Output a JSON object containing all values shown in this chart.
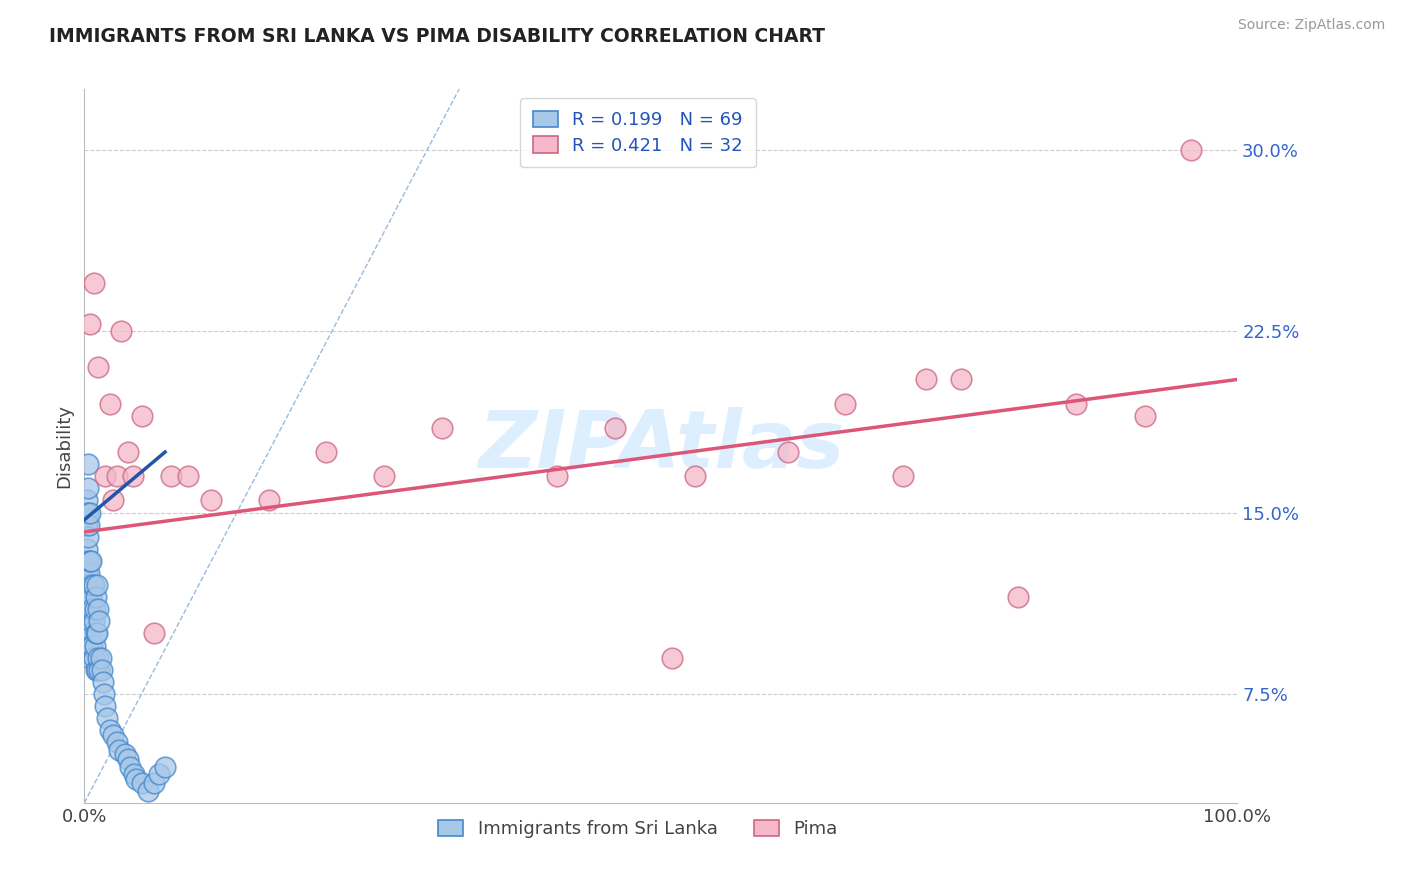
{
  "title": "IMMIGRANTS FROM SRI LANKA VS PIMA DISABILITY CORRELATION CHART",
  "source_text": "Source: ZipAtlas.com",
  "ylabel": "Disability",
  "xlim": [
    0.0,
    1.0
  ],
  "ylim": [
    0.03,
    0.325
  ],
  "x_ticks": [
    0.0,
    1.0
  ],
  "x_tick_labels": [
    "0.0%",
    "100.0%"
  ],
  "y_ticks": [
    0.075,
    0.15,
    0.225,
    0.3
  ],
  "y_tick_labels": [
    "7.5%",
    "15.0%",
    "22.5%",
    "30.0%"
  ],
  "blue_scatter_color": "#a8c8e8",
  "blue_edge_color": "#4488cc",
  "pink_scatter_color": "#f4b8c8",
  "pink_edge_color": "#cc6688",
  "blue_line_color": "#2255aa",
  "pink_line_color": "#dd5577",
  "diag_line_color": "#99bbdd",
  "legend_r1": "R = 0.199",
  "legend_n1": "N = 69",
  "legend_r2": "R = 0.421",
  "legend_n2": "N = 32",
  "legend_label1": "Immigrants from Sri Lanka",
  "legend_label2": "Pima",
  "watermark": "ZIPAtlas",
  "blue_scatter_x": [
    0.001,
    0.001,
    0.001,
    0.002,
    0.002,
    0.002,
    0.002,
    0.002,
    0.002,
    0.003,
    0.003,
    0.003,
    0.003,
    0.003,
    0.003,
    0.003,
    0.003,
    0.004,
    0.004,
    0.004,
    0.004,
    0.004,
    0.005,
    0.005,
    0.005,
    0.005,
    0.005,
    0.006,
    0.006,
    0.006,
    0.006,
    0.007,
    0.007,
    0.007,
    0.008,
    0.008,
    0.008,
    0.009,
    0.009,
    0.01,
    0.01,
    0.01,
    0.011,
    0.011,
    0.011,
    0.012,
    0.012,
    0.013,
    0.013,
    0.014,
    0.015,
    0.016,
    0.017,
    0.018,
    0.02,
    0.022,
    0.025,
    0.028,
    0.03,
    0.035,
    0.038,
    0.04,
    0.043,
    0.045,
    0.05,
    0.055,
    0.06,
    0.065,
    0.07
  ],
  "blue_scatter_y": [
    0.145,
    0.15,
    0.12,
    0.105,
    0.115,
    0.125,
    0.135,
    0.145,
    0.155,
    0.1,
    0.11,
    0.12,
    0.13,
    0.14,
    0.15,
    0.16,
    0.17,
    0.095,
    0.105,
    0.115,
    0.125,
    0.145,
    0.09,
    0.1,
    0.11,
    0.13,
    0.15,
    0.095,
    0.105,
    0.115,
    0.13,
    0.095,
    0.11,
    0.12,
    0.09,
    0.105,
    0.12,
    0.095,
    0.11,
    0.085,
    0.1,
    0.115,
    0.085,
    0.1,
    0.12,
    0.09,
    0.11,
    0.085,
    0.105,
    0.09,
    0.085,
    0.08,
    0.075,
    0.07,
    0.065,
    0.06,
    0.058,
    0.055,
    0.052,
    0.05,
    0.048,
    0.045,
    0.042,
    0.04,
    0.038,
    0.035,
    0.038,
    0.042,
    0.045
  ],
  "pink_scatter_x": [
    0.005,
    0.008,
    0.012,
    0.018,
    0.022,
    0.025,
    0.028,
    0.032,
    0.038,
    0.042,
    0.05,
    0.06,
    0.075,
    0.09,
    0.11,
    0.16,
    0.21,
    0.26,
    0.31,
    0.41,
    0.46,
    0.51,
    0.53,
    0.61,
    0.66,
    0.71,
    0.73,
    0.76,
    0.81,
    0.86,
    0.92,
    0.96
  ],
  "pink_scatter_y": [
    0.228,
    0.245,
    0.21,
    0.165,
    0.195,
    0.155,
    0.165,
    0.225,
    0.175,
    0.165,
    0.19,
    0.1,
    0.165,
    0.165,
    0.155,
    0.155,
    0.175,
    0.165,
    0.185,
    0.165,
    0.185,
    0.09,
    0.165,
    0.175,
    0.195,
    0.165,
    0.205,
    0.205,
    0.115,
    0.195,
    0.19,
    0.3
  ],
  "blue_line_x": [
    0.0,
    0.07
  ],
  "blue_line_y": [
    0.147,
    0.175
  ],
  "pink_line_x": [
    0.0,
    1.0
  ],
  "pink_line_y": [
    0.142,
    0.205
  ],
  "diag_line_x": [
    0.0,
    0.325
  ],
  "diag_line_y": [
    0.03,
    0.325
  ]
}
